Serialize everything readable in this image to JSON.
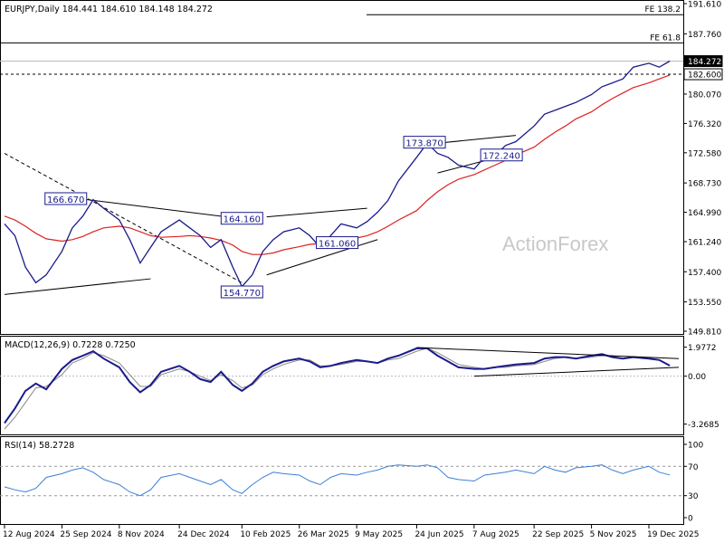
{
  "chart_data": [
    {
      "type": "line",
      "panel": "price",
      "title": "EURJPY,Daily  184.441 184.610 184.148 184.272",
      "symbol": "EURJPY",
      "timeframe": "Daily",
      "ohlc": {
        "open": 184.441,
        "high": 184.61,
        "low": 184.148,
        "close": 184.272
      },
      "watermark": "ActionForex",
      "ylim": [
        149.81,
        191.61
      ],
      "y_ticks": [
        "191.610",
        "187.760",
        "184.272",
        "182.600",
        "180.070",
        "176.320",
        "172.580",
        "168.730",
        "164.990",
        "161.240",
        "157.400",
        "153.550",
        "149.810"
      ],
      "x_ticks": [
        "12 Aug 2024",
        "25 Sep 2024",
        "8 Nov 2024",
        "24 Dec 2024",
        "10 Feb 2025",
        "26 Mar 2025",
        "9 May 2025",
        "24 Jun 2025",
        "7 Aug 2025",
        "22 Sep 2025",
        "5 Nov 2025",
        "19 Dec 2025"
      ],
      "x": [
        "2024-08-12",
        "2024-08-20",
        "2024-08-28",
        "2024-09-05",
        "2024-09-13",
        "2024-09-25",
        "2024-10-03",
        "2024-10-11",
        "2024-10-19",
        "2024-10-27",
        "2024-11-08",
        "2024-11-16",
        "2024-11-24",
        "2024-12-02",
        "2024-12-10",
        "2024-12-24",
        "2025-01-01",
        "2025-01-09",
        "2025-01-17",
        "2025-01-25",
        "2025-02-03",
        "2025-02-10",
        "2025-02-18",
        "2025-02-26",
        "2025-03-06",
        "2025-03-14",
        "2025-03-26",
        "2025-04-03",
        "2025-04-11",
        "2025-04-19",
        "2025-04-27",
        "2025-05-09",
        "2025-05-17",
        "2025-05-25",
        "2025-06-02",
        "2025-06-10",
        "2025-06-24",
        "2025-07-02",
        "2025-07-10",
        "2025-07-18",
        "2025-07-26",
        "2025-08-07",
        "2025-08-15",
        "2025-08-23",
        "2025-08-31",
        "2025-09-08",
        "2025-09-22",
        "2025-09-30",
        "2025-10-08",
        "2025-10-16",
        "2025-10-24",
        "2025-11-05",
        "2025-11-13",
        "2025-11-21",
        "2025-11-29",
        "2025-12-07",
        "2025-12-19",
        "2025-12-27",
        "2026-01-04"
      ],
      "series": [
        {
          "name": "",
          "color": "#1a1a8c",
          "values": [
            163.5,
            162.0,
            158.0,
            156.0,
            157.0,
            160.0,
            163.0,
            164.5,
            166.6,
            165.5,
            164.0,
            161.5,
            158.5,
            160.5,
            162.5,
            164.0,
            163.0,
            162.0,
            160.5,
            161.5,
            158.0,
            155.5,
            157.0,
            160.0,
            161.5,
            162.5,
            163.0,
            162.0,
            160.5,
            162.0,
            163.5,
            163.0,
            163.8,
            165.0,
            166.5,
            169.0,
            172.0,
            173.8,
            172.5,
            172.0,
            171.0,
            170.5,
            172.0,
            172.2,
            173.5,
            174.0,
            176.0,
            177.5,
            178.0,
            178.5,
            179.0,
            180.0,
            181.0,
            181.5,
            182.0,
            183.5,
            184.0,
            183.5,
            184.272
          ]
        },
        {
          "name": "",
          "color": "#dd2222",
          "values": [
            164.5,
            164.0,
            163.2,
            162.3,
            161.6,
            161.3,
            161.5,
            161.9,
            162.5,
            163.0,
            163.2,
            163.0,
            162.5,
            162.0,
            161.8,
            161.9,
            162.0,
            161.9,
            161.7,
            161.4,
            160.8,
            160.0,
            159.6,
            159.6,
            159.8,
            160.2,
            160.6,
            160.9,
            161.0,
            161.1,
            161.4,
            161.7,
            162.0,
            162.5,
            163.2,
            164.0,
            165.2,
            166.5,
            167.6,
            168.5,
            169.2,
            169.8,
            170.4,
            171.0,
            171.6,
            172.3,
            173.3,
            174.3,
            175.2,
            176.0,
            176.9,
            177.8,
            178.7,
            179.5,
            180.2,
            180.9,
            181.5,
            182.0,
            182.5
          ]
        }
      ],
      "fib_levels": [
        {
          "label": "FE 138.2",
          "value": 190.2
        },
        {
          "label": "FE 61.8",
          "value": 186.6
        }
      ],
      "horizontal_levels": [
        {
          "label": "184.272",
          "value": 184.272,
          "style": "solid"
        },
        {
          "label": "182.600",
          "value": 182.6,
          "style": "dashed"
        }
      ],
      "annotations": [
        {
          "label": "166.670",
          "date": "2024-09-28",
          "value": 166.67
        },
        {
          "label": "154.770",
          "date": "2025-02-10",
          "value": 154.77
        },
        {
          "label": "164.160",
          "date": "2025-02-10",
          "value": 164.16
        },
        {
          "label": "161.060",
          "date": "2025-04-24",
          "value": 161.06
        },
        {
          "label": "173.870",
          "date": "2025-06-30",
          "value": 173.87
        },
        {
          "label": "172.240",
          "date": "2025-08-28",
          "value": 172.24
        }
      ],
      "trendlines": [
        {
          "style": "solid",
          "points": [
            [
              "2024-08-12",
              154.5
            ],
            [
              "2024-12-02",
              156.5
            ]
          ]
        },
        {
          "style": "solid",
          "points": [
            [
              "2024-09-25",
              167.0
            ],
            [
              "2025-02-10",
              164.16
            ]
          ]
        },
        {
          "style": "dashed",
          "points": [
            [
              "2024-08-12",
              172.5
            ],
            [
              "2025-02-10",
              156.0
            ]
          ]
        },
        {
          "style": "solid",
          "points": [
            [
              "2025-03-01",
              164.4
            ],
            [
              "2025-05-17",
              165.5
            ]
          ]
        },
        {
          "style": "solid",
          "points": [
            [
              "2025-03-01",
              157.0
            ],
            [
              "2025-05-25",
              161.5
            ]
          ]
        },
        {
          "style": "solid",
          "points": [
            [
              "2025-07-10",
              173.8
            ],
            [
              "2025-09-08",
              174.8
            ]
          ]
        },
        {
          "style": "solid",
          "points": [
            [
              "2025-07-10",
              170.0
            ],
            [
              "2025-09-08",
              172.6
            ]
          ]
        }
      ],
      "grid": false,
      "legend": "none"
    },
    {
      "type": "line",
      "panel": "macd",
      "title": "MACD(12,26,9) 0.7228 0.7250",
      "indicator": "MACD(12,26,9)",
      "values_text": [
        "0.7228",
        "0.7250"
      ],
      "ylim": [
        -3.6,
        2.2
      ],
      "y_ticks": [
        "1.9772",
        "0.00",
        "-3.2685"
      ],
      "series": [
        {
          "name": "",
          "color": "#1a1a8c",
          "values": [
            -3.2,
            -2.2,
            -1.0,
            -0.5,
            -0.9,
            0.5,
            1.1,
            1.4,
            1.7,
            1.2,
            0.6,
            -0.4,
            -1.1,
            -0.6,
            0.3,
            0.7,
            0.3,
            -0.2,
            -0.4,
            0.3,
            -0.6,
            -1.0,
            -0.5,
            0.3,
            0.7,
            1.0,
            1.2,
            1.0,
            0.6,
            0.7,
            0.9,
            1.1,
            1.0,
            0.9,
            1.2,
            1.4,
            1.9,
            1.9,
            1.4,
            1.0,
            0.6,
            0.5,
            0.5,
            0.6,
            0.7,
            0.8,
            0.9,
            1.2,
            1.3,
            1.3,
            1.2,
            1.4,
            1.5,
            1.3,
            1.2,
            1.3,
            1.2,
            1.1,
            0.72
          ]
        },
        {
          "name": "",
          "color": "#888888",
          "values": [
            -3.6,
            -2.8,
            -1.8,
            -0.8,
            -0.7,
            0.1,
            0.9,
            1.2,
            1.6,
            1.4,
            0.9,
            0.1,
            -0.7,
            -0.7,
            0.1,
            0.5,
            0.3,
            0.0,
            -0.3,
            0.1,
            -0.3,
            -0.8,
            -0.6,
            0.1,
            0.5,
            0.8,
            1.1,
            1.1,
            0.7,
            0.7,
            0.8,
            1.0,
            1.0,
            0.9,
            1.1,
            1.2,
            1.7,
            1.9,
            1.6,
            1.2,
            0.8,
            0.6,
            0.5,
            0.6,
            0.6,
            0.7,
            0.8,
            1.0,
            1.2,
            1.3,
            1.2,
            1.3,
            1.4,
            1.4,
            1.2,
            1.3,
            1.2,
            1.1,
            0.73
          ]
        }
      ]
    },
    {
      "type": "line",
      "panel": "rsi",
      "title": "RSI(14) 58.2728",
      "indicator": "RSI(14)",
      "values_text": [
        "58.2728"
      ],
      "ylim": [
        0,
        100
      ],
      "y_ticks": [
        "100",
        "70",
        "30",
        "0"
      ],
      "levels": [
        70,
        30
      ],
      "series": [
        {
          "name": "",
          "color": "#3a7fd5",
          "values": [
            42,
            38,
            35,
            40,
            55,
            60,
            65,
            68,
            62,
            52,
            45,
            35,
            30,
            38,
            55,
            60,
            55,
            50,
            45,
            52,
            38,
            33,
            45,
            55,
            62,
            60,
            58,
            50,
            45,
            55,
            60,
            58,
            62,
            65,
            70,
            72,
            70,
            72,
            68,
            55,
            52,
            50,
            58,
            60,
            62,
            65,
            60,
            70,
            65,
            62,
            68,
            70,
            72,
            65,
            60,
            65,
            70,
            62,
            58.3
          ]
        }
      ]
    }
  ]
}
